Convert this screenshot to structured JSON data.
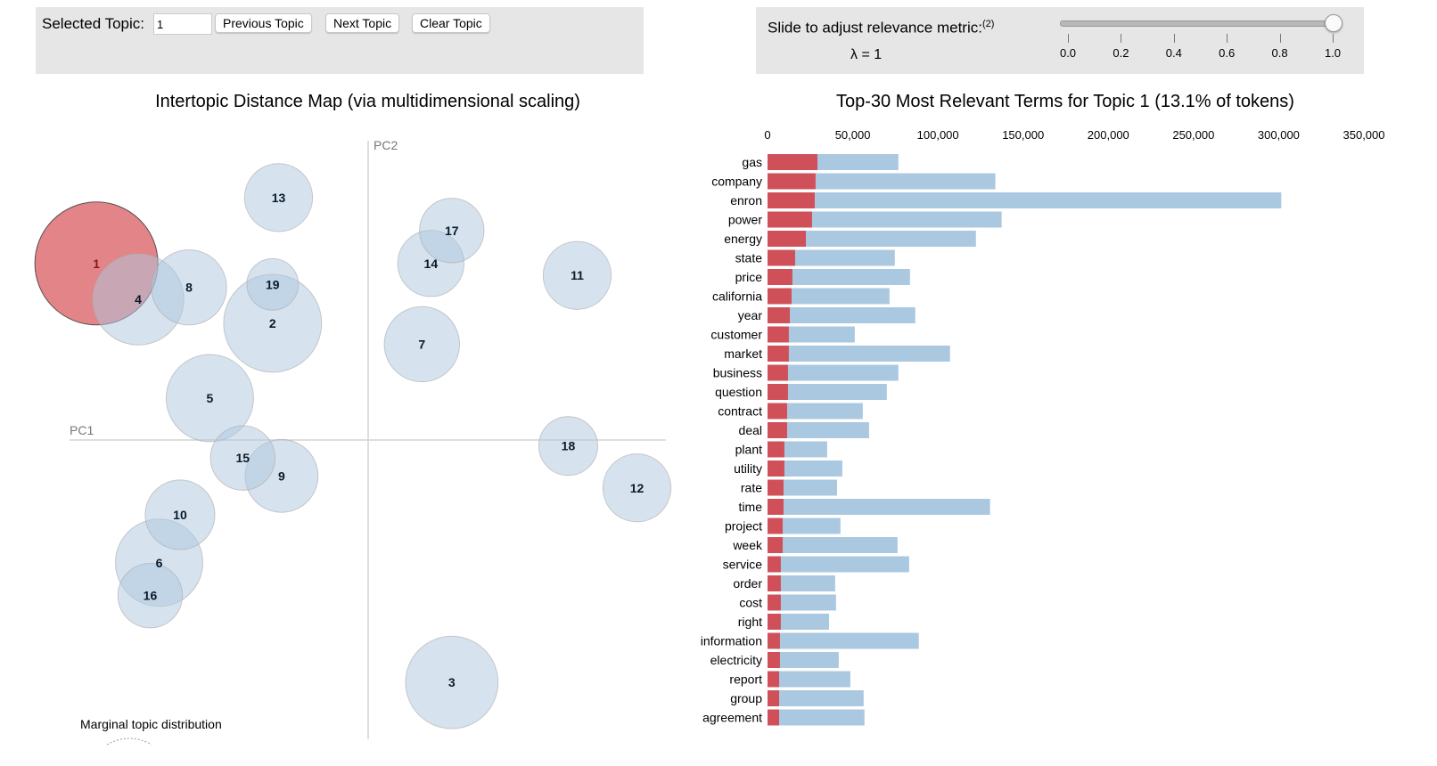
{
  "topic_selector": {
    "label": "Selected Topic:",
    "value": "1",
    "prev_label": "Previous Topic",
    "next_label": "Next Topic",
    "clear_label": "Clear Topic"
  },
  "relevance_slider": {
    "label": "Slide to adjust relevance metric:",
    "footnote": "(2)",
    "lambda_text": "λ = 1",
    "value": 1.0,
    "min": 0.0,
    "max": 1.0,
    "tick_labels": [
      "0.0",
      "0.2",
      "0.4",
      "0.6",
      "0.8",
      "1.0"
    ]
  },
  "colors": {
    "selected_topic": "#d6494f",
    "topic_circle": "#aec8e0",
    "overall_term_bar": "#abc8e1",
    "topic_term_bar": "#d0505a",
    "axis_line": "#d3d3d3",
    "panel_bg": "#e6e6e6"
  },
  "chart_data": [
    {
      "type": "scatter",
      "title": "Intertopic Distance Map (via multidimensional scaling)",
      "xlabel": "PC1",
      "ylabel": "PC2",
      "xlim": [
        -1,
        1
      ],
      "ylim": [
        -1,
        1
      ],
      "selected_topic": 1,
      "legend_label": "Marginal topic distribution",
      "note": "x = PC1, y = PC2 (normalized to axis half-range); size = marginal topic share (%)",
      "points": [
        {
          "topic": 1,
          "x": -0.91,
          "y": 0.59,
          "size": 13.1
        },
        {
          "topic": 2,
          "x": -0.32,
          "y": 0.39,
          "size": 8.3
        },
        {
          "topic": 3,
          "x": 0.28,
          "y": -0.81,
          "size": 7.4
        },
        {
          "topic": 4,
          "x": -0.77,
          "y": 0.47,
          "size": 7.2
        },
        {
          "topic": 5,
          "x": -0.53,
          "y": 0.14,
          "size": 6.6
        },
        {
          "topic": 6,
          "x": -0.7,
          "y": -0.41,
          "size": 6.6
        },
        {
          "topic": 7,
          "x": 0.18,
          "y": 0.32,
          "size": 4.9
        },
        {
          "topic": 8,
          "x": -0.6,
          "y": 0.51,
          "size": 4.9
        },
        {
          "topic": 9,
          "x": -0.29,
          "y": -0.12,
          "size": 4.6
        },
        {
          "topic": 10,
          "x": -0.63,
          "y": -0.25,
          "size": 4.2
        },
        {
          "topic": 11,
          "x": 0.7,
          "y": 0.55,
          "size": 4.0
        },
        {
          "topic": 12,
          "x": 0.9,
          "y": -0.16,
          "size": 4.0
        },
        {
          "topic": 13,
          "x": -0.3,
          "y": 0.81,
          "size": 4.0
        },
        {
          "topic": 14,
          "x": 0.21,
          "y": 0.59,
          "size": 3.8
        },
        {
          "topic": 15,
          "x": -0.42,
          "y": -0.06,
          "size": 3.6
        },
        {
          "topic": 16,
          "x": -0.73,
          "y": -0.52,
          "size": 3.6
        },
        {
          "topic": 17,
          "x": 0.28,
          "y": 0.7,
          "size": 3.6
        },
        {
          "topic": 18,
          "x": 0.67,
          "y": -0.02,
          "size": 3.0
        },
        {
          "topic": 19,
          "x": -0.32,
          "y": 0.52,
          "size": 2.3
        }
      ]
    },
    {
      "type": "bar",
      "orientation": "horizontal",
      "title": "Top-30 Most Relevant Terms for Topic 1 (13.1% of tokens)",
      "xlim": [
        0,
        350000
      ],
      "tick_values": [
        0,
        50000,
        100000,
        150000,
        200000,
        250000,
        300000,
        350000
      ],
      "tick_labels": [
        "0",
        "50,000",
        "100,000",
        "150,000",
        "200,000",
        "250,000",
        "300,000",
        "350,000"
      ],
      "categories": [
        "gas",
        "company",
        "enron",
        "power",
        "energy",
        "state",
        "price",
        "california",
        "year",
        "customer",
        "market",
        "business",
        "question",
        "contract",
        "deal",
        "plant",
        "utility",
        "rate",
        "time",
        "project",
        "week",
        "service",
        "order",
        "cost",
        "right",
        "information",
        "electricity",
        "report",
        "group",
        "agreement"
      ],
      "series": [
        {
          "name": "Overall term frequency",
          "values": [
            76800,
            133700,
            301500,
            137400,
            122300,
            74700,
            83600,
            71600,
            86700,
            51200,
            107100,
            76800,
            70000,
            55900,
            59600,
            35000,
            43900,
            40800,
            130600,
            42800,
            76300,
            83100,
            39700,
            40200,
            36100,
            88800,
            41800,
            48600,
            56400,
            56900
          ]
        },
        {
          "name": "Estimated term frequency within the selected topic",
          "values": [
            29300,
            28200,
            27700,
            26100,
            22500,
            16200,
            14600,
            14100,
            13100,
            12500,
            12500,
            12000,
            12000,
            11500,
            11500,
            9900,
            9900,
            9400,
            9400,
            8900,
            8900,
            7800,
            7800,
            7800,
            7800,
            7300,
            7300,
            6800,
            6800,
            6800
          ]
        }
      ]
    }
  ]
}
